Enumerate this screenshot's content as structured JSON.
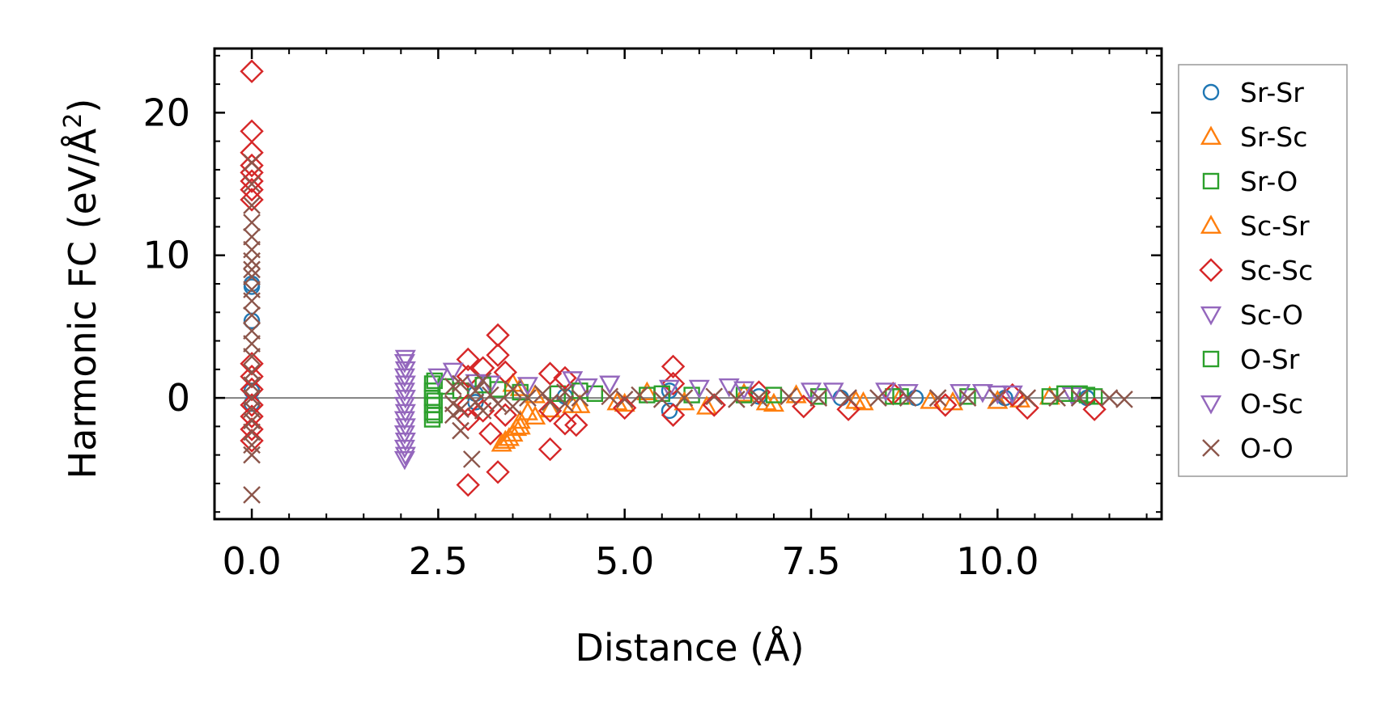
{
  "chart_data": {
    "type": "scatter",
    "title": "",
    "xlabel": "Distance (Å)",
    "ylabel_main": "Harmonic FC (eV/Å",
    "ylabel_sup": "2",
    "ylabel_close": ")",
    "xlim": [
      -0.5,
      12.2
    ],
    "ylim": [
      -8.5,
      24.5
    ],
    "xticks": [
      0.0,
      2.5,
      5.0,
      7.5,
      10.0
    ],
    "xtick_labels": [
      "0.0",
      "2.5",
      "5.0",
      "7.5",
      "10.0"
    ],
    "yticks": [
      0,
      10,
      20
    ],
    "ytick_labels": [
      "0",
      "10",
      "20"
    ],
    "zero_line": true,
    "legend_position": "outside-right",
    "series": [
      {
        "name": "Sr-Sr",
        "marker": "circle",
        "color": "#1f77b4",
        "points": [
          [
            0.0,
            8.0
          ],
          [
            0.0,
            7.8
          ],
          [
            0.0,
            5.4
          ],
          [
            0.0,
            0.5
          ],
          [
            0.0,
            -0.4
          ],
          [
            3.0,
            0.3
          ],
          [
            3.0,
            -0.3
          ],
          [
            4.2,
            0.1
          ],
          [
            5.6,
            -0.9
          ],
          [
            5.6,
            0.5
          ],
          [
            6.8,
            0.1
          ],
          [
            7.9,
            0.0
          ],
          [
            8.9,
            0.0
          ],
          [
            10.1,
            0.0
          ],
          [
            11.2,
            0.0
          ]
        ]
      },
      {
        "name": "Sr-Sc",
        "marker": "triangle-up",
        "color": "#ff7f0e",
        "points": [
          [
            3.35,
            -3.2
          ],
          [
            3.45,
            -2.8
          ],
          [
            3.55,
            -2.1
          ],
          [
            3.6,
            -1.6
          ],
          [
            3.7,
            -1.0
          ],
          [
            3.5,
            1.0
          ],
          [
            3.6,
            0.7
          ],
          [
            3.8,
            0.2
          ],
          [
            4.3,
            -0.5
          ],
          [
            4.9,
            -0.3
          ],
          [
            5.3,
            0.4
          ],
          [
            6.1,
            -0.6
          ],
          [
            6.6,
            0.3
          ],
          [
            7.0,
            -0.4
          ],
          [
            7.3,
            0.2
          ],
          [
            8.2,
            -0.3
          ],
          [
            8.7,
            0.1
          ],
          [
            9.4,
            -0.3
          ],
          [
            10.0,
            -0.2
          ],
          [
            10.7,
            0.1
          ]
        ]
      },
      {
        "name": "Sr-O",
        "marker": "square",
        "color": "#2ca02c",
        "points": [
          [
            2.42,
            1.0
          ],
          [
            2.42,
            0.5
          ],
          [
            2.42,
            0.0
          ],
          [
            2.42,
            -0.5
          ],
          [
            2.42,
            -1.0
          ],
          [
            2.42,
            -1.5
          ],
          [
            2.6,
            0.8
          ],
          [
            2.8,
            0.5
          ],
          [
            3.3,
            0.6
          ],
          [
            3.6,
            0.4
          ],
          [
            4.1,
            0.3
          ],
          [
            4.6,
            0.3
          ],
          [
            5.3,
            0.2
          ],
          [
            5.9,
            0.2
          ],
          [
            6.6,
            0.2
          ],
          [
            7.6,
            0.1
          ],
          [
            8.6,
            0.1
          ],
          [
            9.6,
            0.1
          ],
          [
            10.7,
            0.1
          ],
          [
            11.2,
            0.2
          ],
          [
            11.3,
            0.1
          ]
        ]
      },
      {
        "name": "Sc-Sr",
        "marker": "triangle-up",
        "color": "#ff7f0e",
        "points": [
          [
            3.4,
            -3.0
          ],
          [
            3.5,
            -2.5
          ],
          [
            3.6,
            -2.0
          ],
          [
            3.8,
            -1.3
          ],
          [
            4.0,
            -0.8
          ],
          [
            4.4,
            -0.5
          ],
          [
            5.0,
            -0.4
          ],
          [
            5.8,
            -0.3
          ],
          [
            6.9,
            -0.3
          ],
          [
            8.1,
            -0.2
          ],
          [
            9.1,
            -0.2
          ],
          [
            10.3,
            -0.1
          ]
        ]
      },
      {
        "name": "Sc-Sc",
        "marker": "diamond",
        "color": "#d62728",
        "points": [
          [
            0.0,
            22.9
          ],
          [
            0.0,
            18.7
          ],
          [
            0.0,
            17.2
          ],
          [
            0.0,
            16.3
          ],
          [
            0.0,
            15.8
          ],
          [
            0.0,
            15.2
          ],
          [
            0.0,
            14.6
          ],
          [
            0.0,
            13.9
          ],
          [
            0.0,
            2.4
          ],
          [
            0.0,
            1.5
          ],
          [
            0.0,
            0.6
          ],
          [
            0.0,
            -0.5
          ],
          [
            0.0,
            -1.3
          ],
          [
            0.0,
            -2.2
          ],
          [
            0.0,
            -3.0
          ],
          [
            2.9,
            2.7
          ],
          [
            2.9,
            1.5
          ],
          [
            2.9,
            -0.5
          ],
          [
            2.9,
            -1.5
          ],
          [
            2.9,
            -6.1
          ],
          [
            3.1,
            2.1
          ],
          [
            3.1,
            -0.9
          ],
          [
            3.2,
            -2.5
          ],
          [
            3.3,
            4.4
          ],
          [
            3.3,
            3.0
          ],
          [
            3.3,
            -5.2
          ],
          [
            3.4,
            1.8
          ],
          [
            3.4,
            -1.2
          ],
          [
            4.0,
            1.7
          ],
          [
            4.0,
            -0.9
          ],
          [
            4.0,
            -3.6
          ],
          [
            4.2,
            1.4
          ],
          [
            4.2,
            -1.8
          ],
          [
            4.35,
            -1.9
          ],
          [
            5.0,
            -0.7
          ],
          [
            5.65,
            2.2
          ],
          [
            5.65,
            1.0
          ],
          [
            5.65,
            -1.2
          ],
          [
            6.2,
            -0.5
          ],
          [
            6.8,
            0.4
          ],
          [
            7.4,
            -0.6
          ],
          [
            8.0,
            -0.8
          ],
          [
            8.6,
            0.3
          ],
          [
            9.3,
            -0.5
          ],
          [
            10.2,
            0.2
          ],
          [
            10.4,
            -0.7
          ],
          [
            11.3,
            -0.8
          ]
        ]
      },
      {
        "name": "Sc-O",
        "marker": "triangle-down",
        "color": "#9467bd",
        "points": [
          [
            2.05,
            2.5
          ],
          [
            2.05,
            1.5
          ],
          [
            2.05,
            0.5
          ],
          [
            2.05,
            -0.5
          ],
          [
            2.05,
            -1.5
          ],
          [
            2.05,
            -2.5
          ],
          [
            2.05,
            -3.5
          ],
          [
            2.05,
            -4.3
          ],
          [
            2.7,
            1.9
          ],
          [
            3.2,
            1.0
          ],
          [
            4.3,
            1.3
          ],
          [
            4.8,
            1.0
          ],
          [
            5.6,
            0.7
          ],
          [
            6.6,
            0.6
          ],
          [
            7.5,
            0.5
          ],
          [
            8.5,
            0.5
          ],
          [
            9.5,
            0.4
          ],
          [
            10.2,
            0.3
          ],
          [
            11.0,
            0.2
          ]
        ]
      },
      {
        "name": "O-Sr",
        "marker": "square",
        "color": "#2ca02c",
        "points": [
          [
            2.45,
            1.2
          ],
          [
            2.45,
            -0.2
          ],
          [
            2.45,
            -1.2
          ],
          [
            3.1,
            0.9
          ],
          [
            4.4,
            0.5
          ],
          [
            5.5,
            0.3
          ],
          [
            7.0,
            0.2
          ],
          [
            8.7,
            0.1
          ],
          [
            10.9,
            0.3
          ],
          [
            11.1,
            0.3
          ]
        ]
      },
      {
        "name": "O-Sc",
        "marker": "triangle-down",
        "color": "#9467bd",
        "points": [
          [
            2.06,
            2.8
          ],
          [
            2.06,
            2.0
          ],
          [
            2.06,
            1.0
          ],
          [
            2.06,
            0.0
          ],
          [
            2.06,
            -1.0
          ],
          [
            2.06,
            -2.0
          ],
          [
            2.06,
            -3.0
          ],
          [
            2.06,
            -4.0
          ],
          [
            2.5,
            1.5
          ],
          [
            3.0,
            1.1
          ],
          [
            3.7,
            0.9
          ],
          [
            4.5,
            0.8
          ],
          [
            4.8,
            1.0
          ],
          [
            6.0,
            0.7
          ],
          [
            6.4,
            0.8
          ],
          [
            7.8,
            0.5
          ],
          [
            8.8,
            0.4
          ],
          [
            9.8,
            0.4
          ],
          [
            10.0,
            0.3
          ]
        ]
      },
      {
        "name": "O-O",
        "marker": "x",
        "color": "#8c564b",
        "points": [
          [
            0.0,
            16.5
          ],
          [
            0.0,
            15.0
          ],
          [
            0.0,
            13.5
          ],
          [
            0.0,
            12.3
          ],
          [
            0.0,
            11.3
          ],
          [
            0.0,
            10.4
          ],
          [
            0.0,
            9.6
          ],
          [
            0.0,
            9.0
          ],
          [
            0.0,
            8.5
          ],
          [
            0.0,
            7.6
          ],
          [
            0.0,
            6.8
          ],
          [
            0.0,
            5.8
          ],
          [
            0.0,
            4.7
          ],
          [
            0.0,
            3.8
          ],
          [
            0.0,
            2.9
          ],
          [
            0.0,
            1.8
          ],
          [
            0.0,
            0.9
          ],
          [
            0.0,
            0.0
          ],
          [
            0.0,
            -0.8
          ],
          [
            0.0,
            -1.6
          ],
          [
            0.0,
            -2.4
          ],
          [
            0.0,
            -3.3
          ],
          [
            0.0,
            -4.0
          ],
          [
            0.0,
            -6.8
          ],
          [
            2.7,
            0.8
          ],
          [
            2.7,
            -0.4
          ],
          [
            2.7,
            -1.2
          ],
          [
            2.8,
            1.0
          ],
          [
            2.8,
            -0.8
          ],
          [
            2.8,
            -2.3
          ],
          [
            2.95,
            -4.3
          ],
          [
            3.0,
            0.5
          ],
          [
            3.0,
            -0.3
          ],
          [
            3.1,
            1.2
          ],
          [
            3.1,
            -0.9
          ],
          [
            3.2,
            0.2
          ],
          [
            3.3,
            -0.4
          ],
          [
            3.5,
            0.6
          ],
          [
            3.5,
            -0.6
          ],
          [
            3.7,
            0.0
          ],
          [
            3.9,
            0.3
          ],
          [
            4.0,
            -0.3
          ],
          [
            4.2,
            0.4
          ],
          [
            4.2,
            -0.4
          ],
          [
            4.4,
            0.0
          ],
          [
            4.8,
            0.1
          ],
          [
            5.0,
            -0.1
          ],
          [
            5.2,
            0.2
          ],
          [
            5.5,
            -0.1
          ],
          [
            5.8,
            0.0
          ],
          [
            6.2,
            0.1
          ],
          [
            6.5,
            -0.1
          ],
          [
            6.8,
            0.0
          ],
          [
            7.2,
            0.1
          ],
          [
            7.6,
            0.0
          ],
          [
            8.0,
            0.0
          ],
          [
            8.4,
            0.0
          ],
          [
            8.8,
            0.0
          ],
          [
            9.2,
            0.0
          ],
          [
            9.6,
            0.0
          ],
          [
            10.0,
            0.0
          ],
          [
            10.4,
            0.0
          ],
          [
            10.8,
            0.0
          ],
          [
            11.1,
            0.0
          ],
          [
            11.5,
            0.0
          ],
          [
            11.7,
            -0.1
          ]
        ]
      }
    ]
  }
}
